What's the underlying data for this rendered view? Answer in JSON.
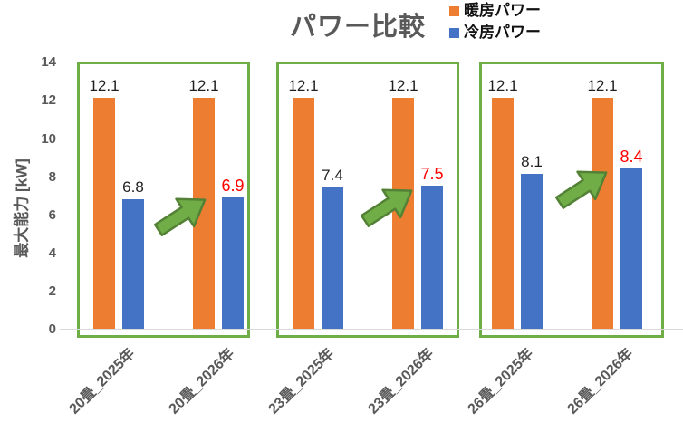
{
  "chart_data": {
    "type": "bar",
    "title": "パワー比較",
    "ylabel": "最大能力 [kW]",
    "ylim": [
      0,
      14
    ],
    "yticks": [
      0,
      2,
      4,
      6,
      8,
      10,
      12,
      14
    ],
    "grid": false,
    "legend_position": "top-right",
    "categories": [
      "20畳_2025年",
      "20畳_2026年",
      "23畳_2025年",
      "23畳_2026年",
      "26畳_2025年",
      "26畳_2026年"
    ],
    "series": [
      {
        "name": "暖房パワー",
        "color": "#ED7D31",
        "values": [
          12.1,
          12.1,
          12.1,
          12.1,
          12.1,
          12.1
        ]
      },
      {
        "name": "冷房パワー",
        "color": "#4472C4",
        "values": [
          6.8,
          6.9,
          7.4,
          7.5,
          8.1,
          8.4
        ]
      }
    ],
    "value_labels_shown": true,
    "highlighted_cooling_indices": [
      1,
      3,
      5
    ],
    "group_boxes": [
      [
        0,
        1
      ],
      [
        2,
        3
      ],
      [
        4,
        5
      ]
    ],
    "arrows": {
      "count": 3,
      "direction": "up-right",
      "meaning": "increase from 2025 to 2026 cooling power"
    },
    "colors": {
      "heating": "#ED7D31",
      "cooling": "#4472C4",
      "box_green": "#6FAD47",
      "arrow_fill": "#70AD47",
      "arrow_stroke": "#538135",
      "axis_text": "#595959",
      "title_text": "#595959",
      "value_text": "#1f1f1f",
      "highlight": "#FF0000",
      "baseline": "#D9D9D9"
    }
  }
}
